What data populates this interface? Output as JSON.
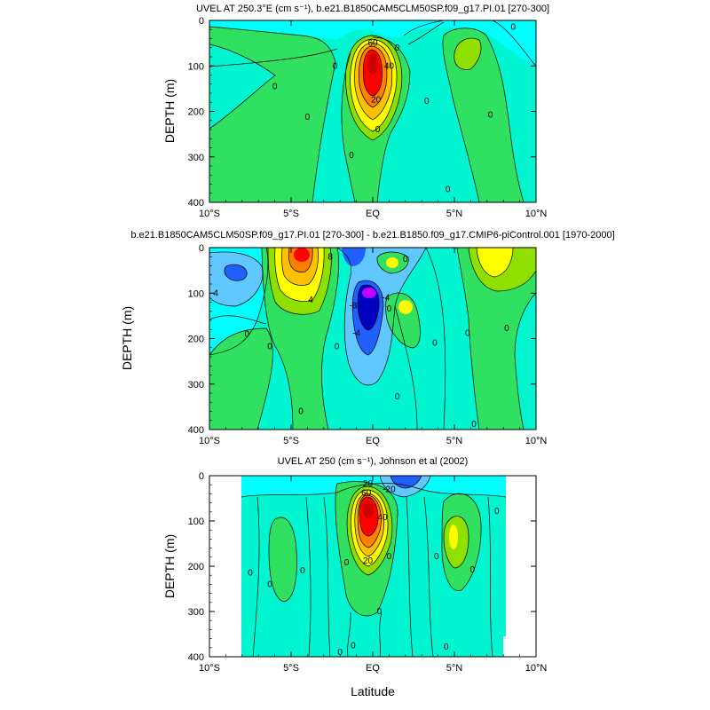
{
  "colors": {
    "c_cyan": "#00ffff",
    "c_aqua": "#00f5d0",
    "c_green": "#30e060",
    "c_lime": "#8fe000",
    "c_yellow": "#ffff00",
    "c_gold": "#ffc000",
    "c_orange": "#ff8000",
    "c_red": "#ff0000",
    "c_dred": "#d00000",
    "c_lblue": "#60c8ff",
    "c_blue": "#2060ff",
    "c_dblue": "#0000c0",
    "c_purple": "#c000ff"
  },
  "chart_data": [
    {
      "type": "contour",
      "title": "UVEL AT 250.3°E (cm s⁻¹), b.e21.B1850CAM5CLM50SP.f09_g17.PI.01 [270-300]",
      "xlabel": "",
      "ylabel": "DEPTH (m)",
      "xlim": [
        -10,
        10
      ],
      "ylim": [
        400,
        0
      ],
      "x_ticks": [
        -10,
        -5,
        0,
        5,
        10
      ],
      "x_tick_labels": [
        "10°S",
        "5°S",
        "EQ",
        "5°N",
        "10°N"
      ],
      "y_ticks": [
        0,
        100,
        200,
        300,
        400
      ],
      "y_tick_labels": [
        "0",
        "100",
        "200",
        "300",
        "400"
      ],
      "contour_labels": [
        {
          "text": "60",
          "lat": 0.0,
          "depth": 50
        },
        {
          "text": "40",
          "lat": 1.0,
          "depth": 100
        },
        {
          "text": "20",
          "lat": 0.2,
          "depth": 175
        },
        {
          "text": "0",
          "lat": -6.0,
          "depth": 145
        },
        {
          "text": "0",
          "lat": -4.0,
          "depth": 213
        },
        {
          "text": "0",
          "lat": -2.3,
          "depth": 100
        },
        {
          "text": "0",
          "lat": 0.3,
          "depth": 240
        },
        {
          "text": "0",
          "lat": -1.3,
          "depth": 297
        },
        {
          "text": "0",
          "lat": 3.3,
          "depth": 178
        },
        {
          "text": "0",
          "lat": 4.6,
          "depth": 372
        },
        {
          "text": "0",
          "lat": 7.2,
          "depth": 208
        },
        {
          "text": "0",
          "lat": 8.6,
          "depth": 15
        },
        {
          "text": "0",
          "lat": 1.5,
          "depth": 60
        }
      ]
    },
    {
      "type": "contour",
      "title": "b.e21.B1850CAM5CLM50SP.f09_g17.PI.01 [270-300] - b.e21.B1850.f09_g17.CMIP6-piControl.001 [1970-2000]",
      "xlabel": "",
      "ylabel": "DEPTH (m)",
      "xlim": [
        -10,
        10
      ],
      "ylim": [
        400,
        0
      ],
      "x_ticks": [
        -10,
        -5,
        0,
        5,
        10
      ],
      "x_tick_labels": [
        "10°S",
        "5°S",
        "EQ",
        "5°N",
        "10°N"
      ],
      "y_ticks": [
        0,
        100,
        200,
        300,
        400
      ],
      "y_tick_labels": [
        "0",
        "100",
        "200",
        "300",
        "400"
      ],
      "contour_labels": [
        {
          "text": "8",
          "lat": -2.6,
          "depth": 20
        },
        {
          "text": "-4",
          "lat": -9.7,
          "depth": 100
        },
        {
          "text": "4",
          "lat": -3.8,
          "depth": 115
        },
        {
          "text": "-8",
          "lat": -1.2,
          "depth": 128
        },
        {
          "text": "-4",
          "lat": 0.8,
          "depth": 110
        },
        {
          "text": "-4",
          "lat": -1.0,
          "depth": 188
        },
        {
          "text": "0",
          "lat": 2.0,
          "depth": 25
        },
        {
          "text": "0",
          "lat": -7.7,
          "depth": 190
        },
        {
          "text": "0",
          "lat": -6.3,
          "depth": 218
        },
        {
          "text": "0",
          "lat": -2.2,
          "depth": 218
        },
        {
          "text": "0",
          "lat": 1.0,
          "depth": 135
        },
        {
          "text": "0",
          "lat": 3.8,
          "depth": 210
        },
        {
          "text": "0",
          "lat": 5.8,
          "depth": 188
        },
        {
          "text": "0",
          "lat": 8.2,
          "depth": 178
        },
        {
          "text": "0",
          "lat": 1.5,
          "depth": 328
        },
        {
          "text": "0",
          "lat": -4.4,
          "depth": 360
        },
        {
          "text": "0",
          "lat": 6.2,
          "depth": 388
        }
      ]
    },
    {
      "type": "contour",
      "title": "UVEL AT 250 (cm s⁻¹), Johnson et al (2002)",
      "xlabel": "Latitude",
      "ylabel": "DEPTH (m)",
      "xlim": [
        -10,
        10
      ],
      "ylim": [
        400,
        0
      ],
      "data_lat_range": [
        -8,
        8.2
      ],
      "x_ticks": [
        -10,
        -5,
        0,
        5,
        10
      ],
      "x_tick_labels": [
        "10°S",
        "5°S",
        "EQ",
        "5°N",
        "10°N"
      ],
      "y_ticks": [
        0,
        100,
        200,
        300,
        400
      ],
      "y_tick_labels": [
        "0",
        "100",
        "200",
        "300",
        "400"
      ],
      "contour_labels": [
        {
          "text": "20",
          "lat": -0.3,
          "depth": 18
        },
        {
          "text": "60",
          "lat": -0.4,
          "depth": 38
        },
        {
          "text": "40",
          "lat": 0.6,
          "depth": 92
        },
        {
          "text": "20",
          "lat": -0.3,
          "depth": 188
        },
        {
          "text": "-20",
          "lat": 1.0,
          "depth": 30
        },
        {
          "text": "0",
          "lat": -7.5,
          "depth": 215
        },
        {
          "text": "0",
          "lat": -6.3,
          "depth": 240
        },
        {
          "text": "0",
          "lat": -4.3,
          "depth": 210
        },
        {
          "text": "0",
          "lat": -1.6,
          "depth": 192
        },
        {
          "text": "0",
          "lat": 1.0,
          "depth": 178
        },
        {
          "text": "0",
          "lat": 3.9,
          "depth": 178
        },
        {
          "text": "0",
          "lat": 6.1,
          "depth": 208
        },
        {
          "text": "0",
          "lat": 7.6,
          "depth": 78
        },
        {
          "text": "0",
          "lat": 0.4,
          "depth": 300
        },
        {
          "text": "0",
          "lat": 4.5,
          "depth": 378
        },
        {
          "text": "0",
          "lat": -2.0,
          "depth": 390
        },
        {
          "text": "0",
          "lat": -1.2,
          "depth": 375
        }
      ]
    }
  ]
}
